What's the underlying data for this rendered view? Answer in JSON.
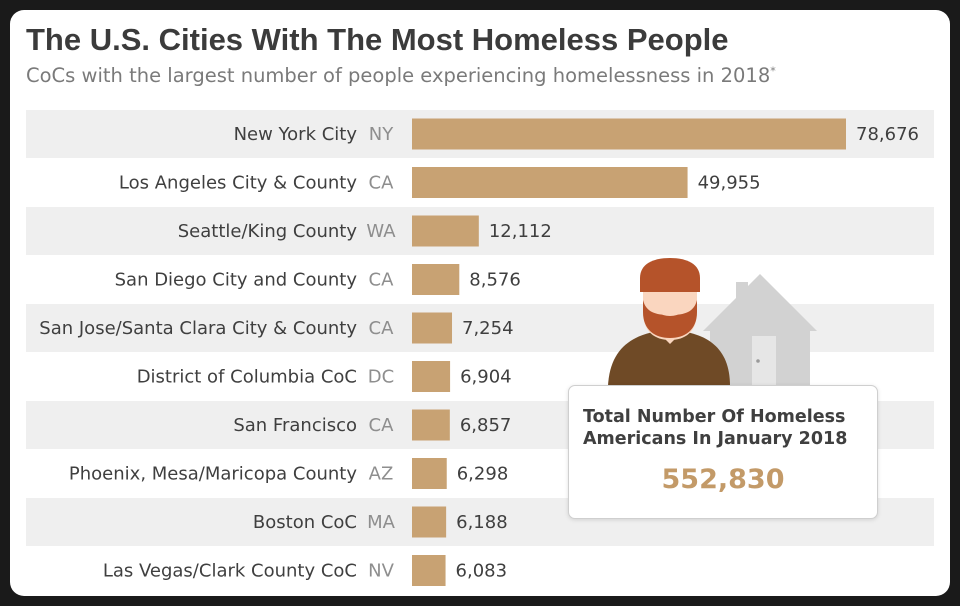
{
  "header": {
    "title": "The U.S. Cities With The Most Homeless People",
    "subtitle": "CoCs with the largest number of people experiencing homelessness in 2018",
    "subtitle_mark": "*"
  },
  "callout": {
    "text_line1": "Total Number Of Homeless",
    "text_line2": "Americans In January 2018",
    "value": "552,830"
  },
  "colors": {
    "bar": "#c8a273",
    "row_shade": "#efefef",
    "accent": "#c39a68",
    "person_skin": "#fad6bf",
    "person_hair": "#b5532a",
    "person_shirt": "#6f4a26",
    "house": "#d2d2d2"
  },
  "icons": {
    "person": "person-icon",
    "house": "house-icon"
  },
  "chart_data": {
    "type": "bar",
    "orientation": "horizontal",
    "categories": [
      "New York City",
      "Los Angeles City & County",
      "Seattle/King County",
      "San Diego City and County",
      "San Jose/Santa Clara City & County",
      "District of Columbia CoC",
      "San Francisco",
      "Phoenix, Mesa/Maricopa County",
      "Boston CoC",
      "Las Vegas/Clark County CoC"
    ],
    "states": [
      "NY",
      "CA",
      "WA",
      "CA",
      "CA",
      "DC",
      "CA",
      "AZ",
      "MA",
      "NV"
    ],
    "values": [
      78676,
      49955,
      12112,
      8576,
      7254,
      6904,
      6857,
      6298,
      6188,
      6083
    ],
    "value_labels": [
      "78,676",
      "49,955",
      "12,112",
      "8,576",
      "7,254",
      "6,904",
      "6,857",
      "6,298",
      "6,188",
      "6,083"
    ],
    "grid": false
  }
}
